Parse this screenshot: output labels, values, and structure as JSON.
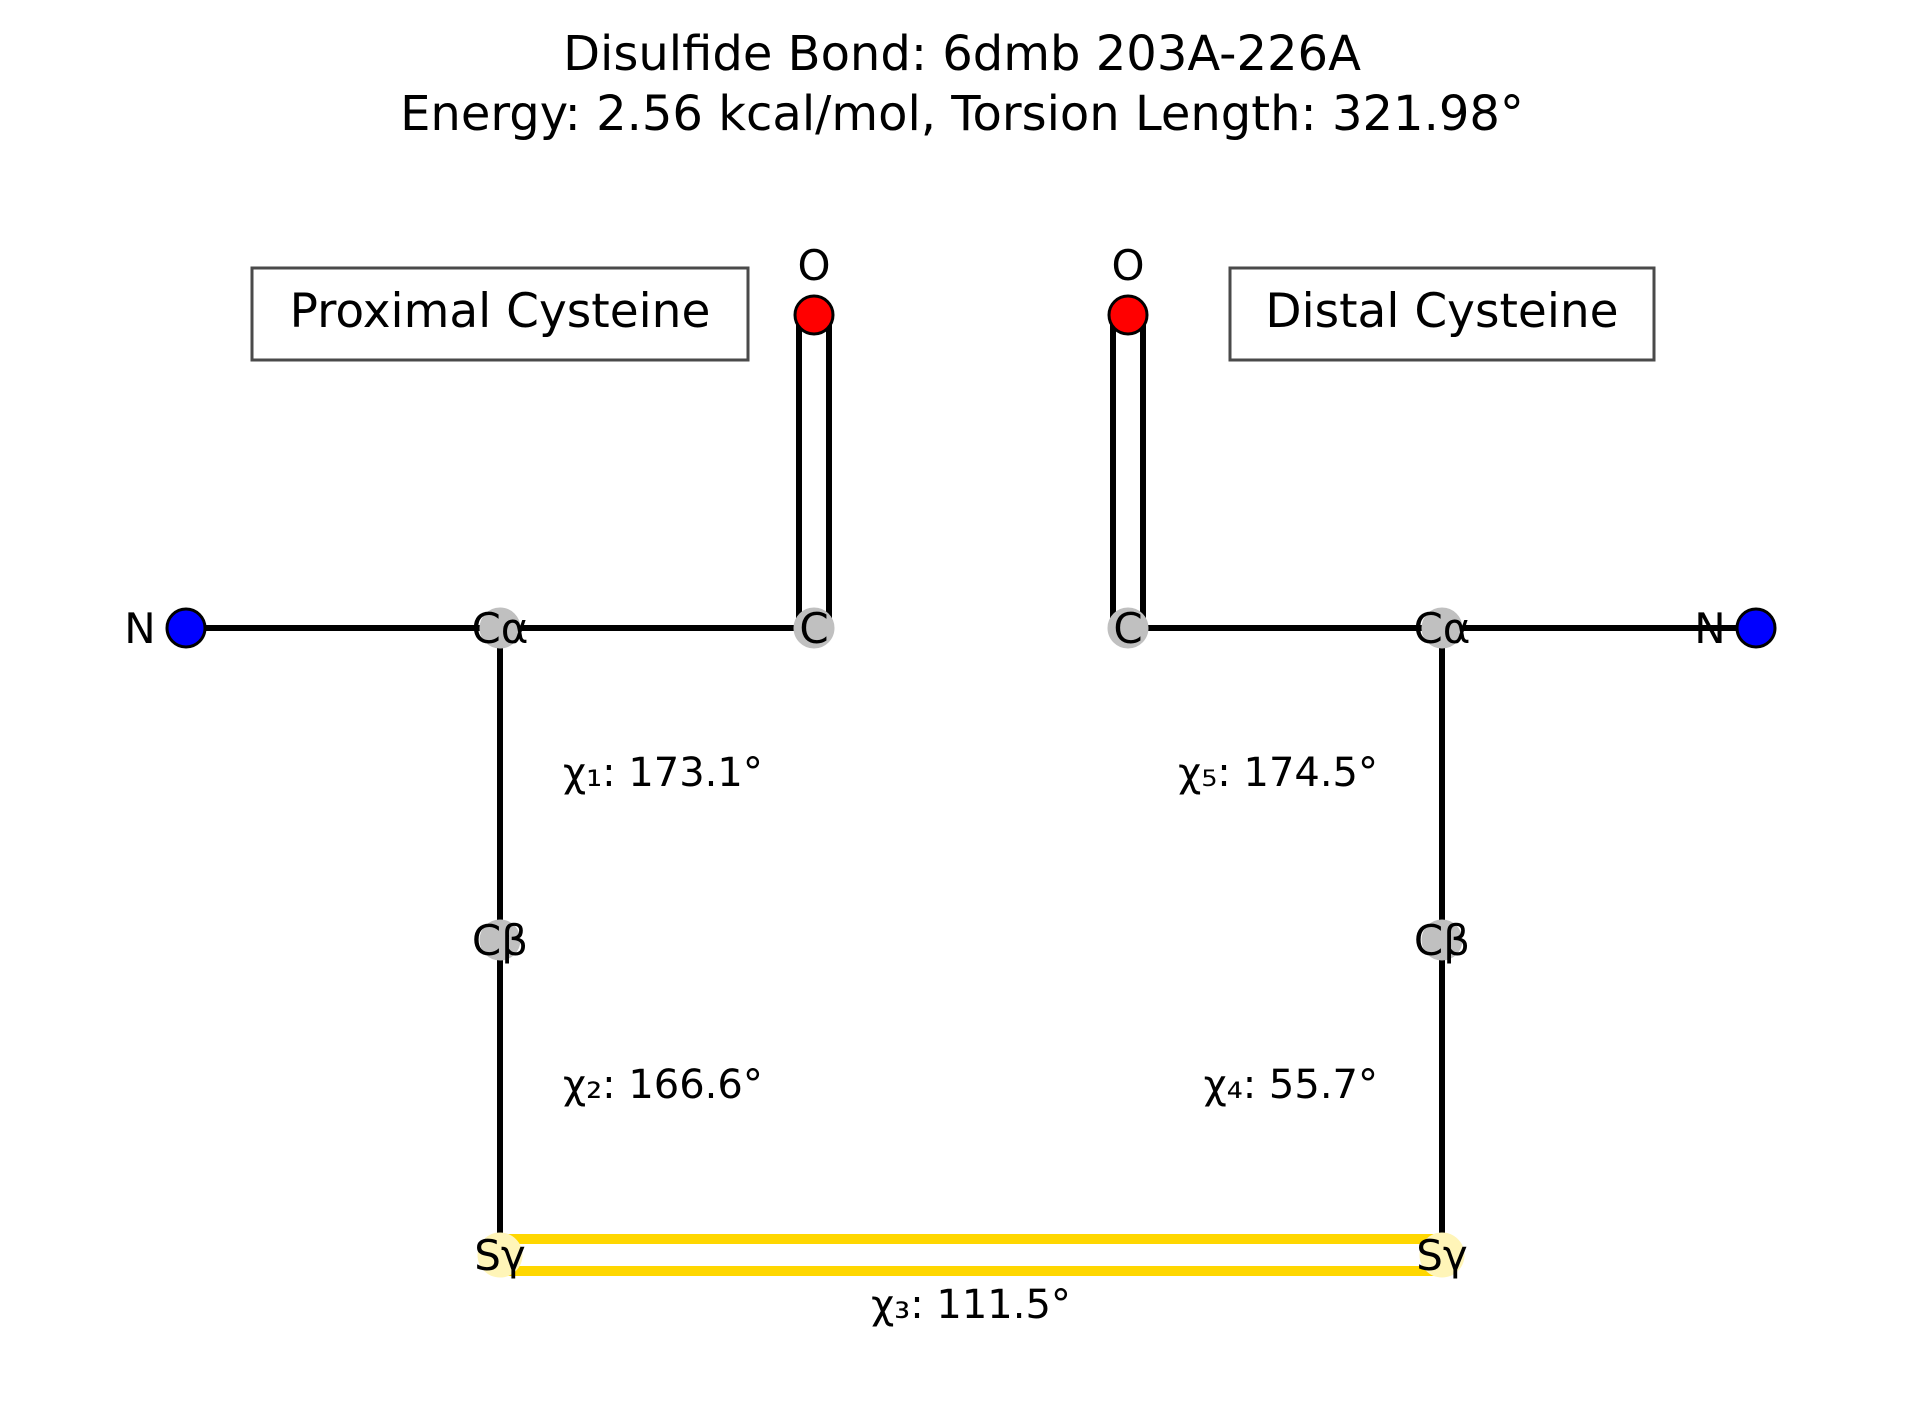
{
  "title": {
    "line1": "Disulfide Bond: 6dmb 203A-226A",
    "line2": "Energy: 2.56 kcal/mol, Torsion Length: 321.98°"
  },
  "proximal": {
    "label": "Proximal Cysteine",
    "atoms": {
      "n": "N",
      "ca": "Cα",
      "c": "C",
      "o": "O",
      "cb": "Cβ",
      "sg": "Sγ"
    }
  },
  "distal": {
    "label": "Distal Cysteine",
    "atoms": {
      "n": "N",
      "ca": "Cα",
      "c": "C",
      "o": "O",
      "cb": "Cβ",
      "sg": "Sγ"
    }
  },
  "torsions": {
    "chi1": "χ₁: 173.1°",
    "chi2": "χ₂: 166.6°",
    "chi3": "χ₃: 111.5°",
    "chi4": "χ₄: 55.7°",
    "chi5": "χ₅: 174.5°"
  },
  "colors": {
    "nitrogen": "#0000ff",
    "oxygen": "#ff0000",
    "carbon": "#c0c0c0",
    "sulfur": "#fff5b8",
    "disulfide": "#ffd700",
    "bond": "#000000",
    "box_border": "#4a4a4a"
  }
}
